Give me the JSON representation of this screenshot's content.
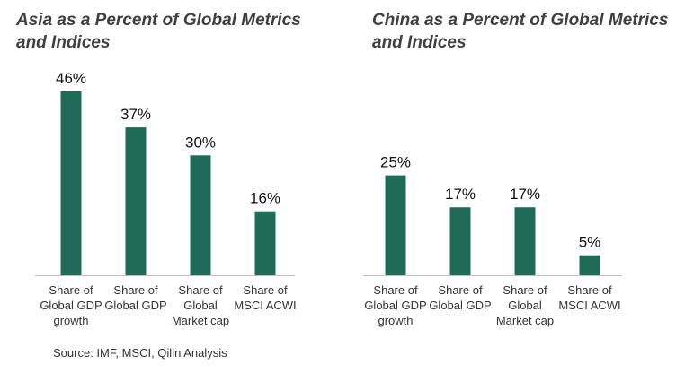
{
  "source": "Source: IMF, MSCI, Qilin Analysis",
  "colors": {
    "bar": "#1f6b58",
    "baseline": "#bfbfbf",
    "title": "#404040",
    "label": "#333333",
    "value": "#111111"
  },
  "chart_data": [
    {
      "type": "bar",
      "title": "Asia as a Percent of Global Metrics and Indices",
      "categories": [
        [
          "Share of",
          "Global GDP",
          "growth"
        ],
        [
          "Share of",
          "Global GDP"
        ],
        [
          "Share of",
          "Global",
          "Market cap"
        ],
        [
          "Share of",
          "MSCI ACWI"
        ]
      ],
      "values": [
        46,
        37,
        30,
        16
      ],
      "value_labels": [
        "46%",
        "37%",
        "30%",
        "16%"
      ],
      "unit": "%",
      "ylim": [
        0,
        46
      ],
      "grid": false,
      "legend": "none"
    },
    {
      "type": "bar",
      "title": "China as a Percent of Global Metrics and Indices",
      "categories": [
        [
          "Share of",
          "Global GDP",
          "growth"
        ],
        [
          "Share of",
          "Global GDP"
        ],
        [
          "Share of",
          "Global",
          "Market cap"
        ],
        [
          "Share of",
          "MSCI ACWI"
        ]
      ],
      "values": [
        25,
        17,
        17,
        5
      ],
      "value_labels": [
        "25%",
        "17%",
        "17%",
        "5%"
      ],
      "unit": "%",
      "ylim": [
        0,
        46
      ],
      "grid": false,
      "legend": "none"
    }
  ]
}
